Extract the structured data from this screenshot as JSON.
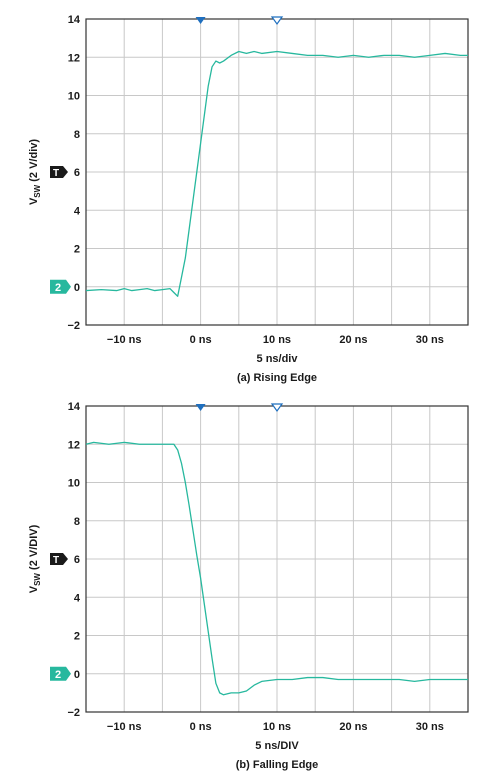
{
  "chart_data": [
    {
      "type": "line",
      "xlabel": "5 ns/div",
      "caption": "(a) Rising Edge",
      "ylabel_main": "V",
      "ylabel_sub": "SW",
      "ylabel_rest": " (2 V/div)",
      "xlim": [
        -15,
        35
      ],
      "ylim": [
        -2,
        14
      ],
      "yticks": [
        -2,
        0,
        2,
        4,
        6,
        8,
        10,
        12,
        14
      ],
      "ytick_labels": [
        "−2",
        "0",
        "2",
        "4",
        "6",
        "8",
        "10",
        "12",
        "14"
      ],
      "xticks": [
        -10,
        0,
        10,
        20,
        30
      ],
      "xtick_labels": [
        "−10 ns",
        "0 ns",
        "10 ns",
        "20 ns",
        "30 ns"
      ],
      "grid": true,
      "trigger_marker_label": "T",
      "trigger_level": 6,
      "ground_marker_label": "2",
      "ground_level": 0,
      "trigger_position_x": 0,
      "trigger_delay_x": 10,
      "series_color": "#27b89e",
      "series": [
        {
          "x": [
            -15,
            -13,
            -11,
            -10,
            -9,
            -8,
            -7,
            -6,
            -5,
            -4,
            -3.5,
            -3,
            -2.5,
            -2,
            -1.5,
            -1,
            -0.5,
            0,
            0.5,
            1,
            1.5,
            2,
            2.5,
            3,
            4,
            5,
            6,
            7,
            8,
            10,
            12,
            14,
            16,
            18,
            20,
            22,
            24,
            26,
            28,
            30,
            32,
            34,
            35
          ],
          "y": [
            -0.2,
            -0.15,
            -0.2,
            -0.1,
            -0.2,
            -0.15,
            -0.1,
            -0.2,
            -0.15,
            -0.1,
            -0.3,
            -0.5,
            0.5,
            1.5,
            3,
            4.5,
            6,
            7.5,
            9,
            10.5,
            11.5,
            11.8,
            11.7,
            11.8,
            12.1,
            12.3,
            12.2,
            12.3,
            12.2,
            12.3,
            12.2,
            12.1,
            12.1,
            12.0,
            12.1,
            12.0,
            12.1,
            12.1,
            12.0,
            12.1,
            12.2,
            12.1,
            12.1
          ]
        }
      ]
    },
    {
      "type": "line",
      "xlabel": "5 ns/DIV",
      "caption": "(b) Falling Edge",
      "ylabel_main": "V",
      "ylabel_sub": "SW",
      "ylabel_rest": " (2 V/DIV)",
      "xlim": [
        -15,
        35
      ],
      "ylim": [
        -2,
        14
      ],
      "yticks": [
        -2,
        0,
        2,
        4,
        6,
        8,
        10,
        12,
        14
      ],
      "ytick_labels": [
        "−2",
        "0",
        "2",
        "4",
        "6",
        "8",
        "10",
        "12",
        "14"
      ],
      "xticks": [
        -10,
        0,
        10,
        20,
        30
      ],
      "xtick_labels": [
        "−10 ns",
        "0 ns",
        "10 ns",
        "20 ns",
        "30 ns"
      ],
      "grid": true,
      "trigger_marker_label": "T",
      "trigger_level": 6,
      "ground_marker_label": "2",
      "ground_level": 0,
      "trigger_position_x": 0,
      "trigger_delay_x": 10,
      "series_color": "#27b89e",
      "series": [
        {
          "x": [
            -15,
            -14,
            -12,
            -10,
            -8,
            -6,
            -4,
            -3.5,
            -3,
            -2.5,
            -2,
            -1.5,
            -1,
            -0.5,
            0,
            0.5,
            1,
            1.5,
            2,
            2.5,
            3,
            4,
            5,
            6,
            7,
            8,
            10,
            12,
            14,
            16,
            18,
            20,
            22,
            24,
            26,
            28,
            30,
            32,
            34,
            35
          ],
          "y": [
            12.0,
            12.1,
            12.0,
            12.1,
            12.0,
            12.0,
            12.0,
            12.0,
            11.7,
            11.0,
            10.0,
            8.8,
            7.5,
            6.2,
            5.0,
            3.6,
            2.2,
            0.8,
            -0.5,
            -1.0,
            -1.1,
            -1.0,
            -1.0,
            -0.9,
            -0.6,
            -0.4,
            -0.3,
            -0.3,
            -0.2,
            -0.2,
            -0.3,
            -0.3,
            -0.3,
            -0.3,
            -0.3,
            -0.4,
            -0.3,
            -0.3,
            -0.3,
            -0.3
          ]
        }
      ]
    }
  ]
}
